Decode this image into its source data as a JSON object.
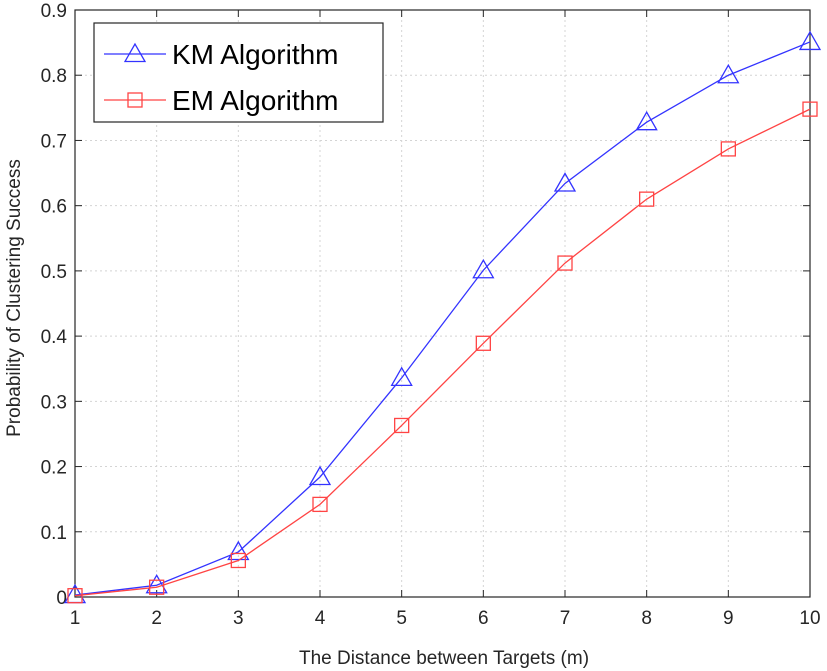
{
  "chart_data": {
    "type": "line",
    "title": "",
    "xlabel": "The Distance between Targets (m)",
    "ylabel": "Probability of Clustering Success",
    "x": [
      1,
      2,
      3,
      4,
      5,
      6,
      7,
      8,
      9,
      10
    ],
    "xlim": [
      1,
      10
    ],
    "ylim": [
      0,
      0.9
    ],
    "xticks": [
      1,
      2,
      3,
      4,
      5,
      6,
      7,
      8,
      9,
      10
    ],
    "xtick_labels": [
      "1",
      "2",
      "3",
      "4",
      "5",
      "6",
      "7",
      "8",
      "9",
      "10"
    ],
    "yticks": [
      0,
      0.1,
      0.2,
      0.3,
      0.4,
      0.5,
      0.6,
      0.7,
      0.8,
      0.9
    ],
    "ytick_labels": [
      "0",
      "0.1",
      "0.2",
      "0.3",
      "0.4",
      "0.5",
      "0.6",
      "0.7",
      "0.8",
      "0.9"
    ],
    "grid": true,
    "legend_position": "top-left",
    "series": [
      {
        "name": "KM Algorithm",
        "marker": "triangle",
        "color": "#3333ff",
        "values": [
          0.003,
          0.018,
          0.069,
          0.184,
          0.336,
          0.501,
          0.634,
          0.728,
          0.8,
          0.851
        ]
      },
      {
        "name": "EM Algorithm",
        "marker": "square",
        "color": "#ff4444",
        "values": [
          0.002,
          0.015,
          0.056,
          0.142,
          0.263,
          0.389,
          0.512,
          0.61,
          0.687,
          0.748
        ]
      }
    ]
  }
}
